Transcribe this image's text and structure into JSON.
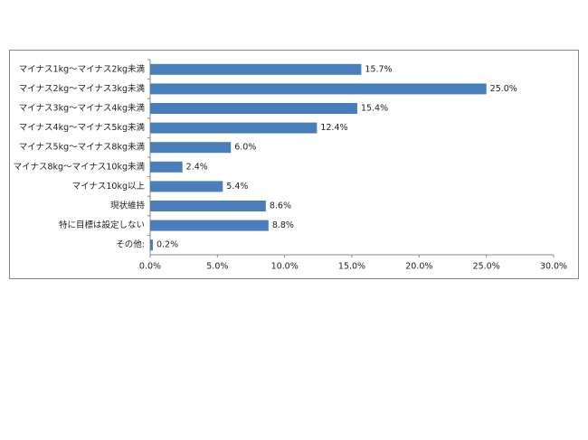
{
  "chart_data": {
    "type": "bar",
    "orientation": "horizontal",
    "categories": [
      "マイナス1kg～マイナス2kg未満",
      "マイナス2kg～マイナス3kg未満",
      "マイナス3kg～マイナス4kg未満",
      "マイナス4kg～マイナス5kg未満",
      "マイナス5kg～マイナス8kg未満",
      "マイナス8kg～マイナス10kg未満",
      "マイナス10kg以上",
      "現状維持",
      "特に目標は設定しない",
      "その他:"
    ],
    "values": [
      15.7,
      25.0,
      15.4,
      12.4,
      6.0,
      2.4,
      5.4,
      8.6,
      8.8,
      0.2
    ],
    "value_labels": [
      "15.7%",
      "25.0%",
      "15.4%",
      "12.4%",
      "6.0%",
      "2.4%",
      "5.4%",
      "8.6%",
      "8.8%",
      "0.2%"
    ],
    "color": "#4a7ebb",
    "xlim": [
      0,
      30
    ],
    "xticks": [
      {
        "value": 0,
        "label": "0.0%"
      },
      {
        "value": 5,
        "label": "5.0%"
      },
      {
        "value": 10,
        "label": "10.0%"
      },
      {
        "value": 15,
        "label": "15.0%"
      },
      {
        "value": 20,
        "label": "20.0%"
      },
      {
        "value": 25,
        "label": "25.0%"
      },
      {
        "value": 30,
        "label": "30.0%"
      }
    ],
    "grid": false
  }
}
